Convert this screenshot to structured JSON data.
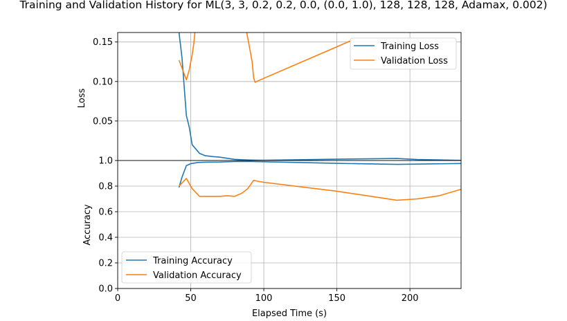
{
  "chart_data": {
    "title": "Training and Validation History for ML(3, 3, 0.2, 0.2, 0.0, (0.0, 1.0), 128, 128, 128, Adamax, 0.002)",
    "xlabel": "Elapsed Time (s)",
    "xlim": [
      0,
      235
    ],
    "xticks": [
      0,
      50,
      100,
      150,
      200
    ],
    "grid": true,
    "colors": {
      "training": "#1f77b4",
      "validation": "#ff7f0e"
    },
    "panels": [
      {
        "type": "line",
        "ylabel": "Loss",
        "ylim": [
          0.0,
          0.162
        ],
        "yticks": [
          0.05,
          0.1,
          0.15
        ],
        "ytick_labels": [
          "0.05",
          "0.10",
          "0.15"
        ],
        "legend_position": "top-right",
        "series": [
          {
            "name": "Training Loss",
            "color": "#1f77b4",
            "x": [
              42,
              44,
              47,
              49,
              51,
              56,
              60,
              65,
              70,
              75,
              80,
              85,
              90,
              95,
              100,
              150,
              191,
              205,
              235
            ],
            "y": [
              0.162,
              0.13,
              0.057,
              0.042,
              0.02,
              0.009,
              0.006,
              0.005,
              0.0042,
              0.0028,
              0.0015,
              0.001,
              0.0006,
              0.0004,
              0.0003,
              0.0017,
              0.0025,
              0.0012,
              0.0002
            ]
          },
          {
            "name": "Validation Loss",
            "color": "#ff7f0e",
            "x": [
              42,
              44,
              46,
              47,
              49,
              51,
              52,
              53,
              88,
              90,
              92,
              93,
              94,
              95,
              100,
              150,
              160
            ],
            "y": [
              0.127,
              0.117,
              0.107,
              0.102,
              0.115,
              0.134,
              0.147,
              0.165,
              0.165,
              0.145,
              0.125,
              0.105,
              0.099,
              0.1,
              0.104,
              0.144,
              0.152
            ]
          }
        ]
      },
      {
        "type": "line",
        "ylabel": "Accuracy",
        "ylim": [
          0.0,
          1.0
        ],
        "yticks": [
          0.0,
          0.2,
          0.4,
          0.6,
          0.8,
          1.0
        ],
        "ytick_labels": [
          "0.0",
          "0.2",
          "0.4",
          "0.6",
          "0.8",
          "1.0"
        ],
        "legend_position": "bottom-left",
        "series": [
          {
            "name": "Training Accuracy",
            "color": "#1f77b4",
            "x": [
              42,
              44,
              47,
              50,
              55,
              60,
              70,
              80,
              90,
              100,
              150,
              191,
              205,
              235
            ],
            "y": [
              0.79,
              0.87,
              0.96,
              0.975,
              0.985,
              0.987,
              0.988,
              0.992,
              0.993,
              0.99,
              0.978,
              0.97,
              0.972,
              0.977
            ]
          },
          {
            "name": "Validation Accuracy",
            "color": "#ff7f0e",
            "x": [
              42,
              47,
              51,
              56,
              60,
              65,
              70,
              75,
              80,
              85,
              89,
              93,
              95,
              100,
              150,
              191,
              205,
              220,
              235
            ],
            "y": [
              0.8,
              0.86,
              0.78,
              0.72,
              0.72,
              0.72,
              0.72,
              0.725,
              0.72,
              0.745,
              0.78,
              0.845,
              0.84,
              0.83,
              0.76,
              0.69,
              0.7,
              0.725,
              0.775
            ]
          }
        ]
      }
    ]
  }
}
